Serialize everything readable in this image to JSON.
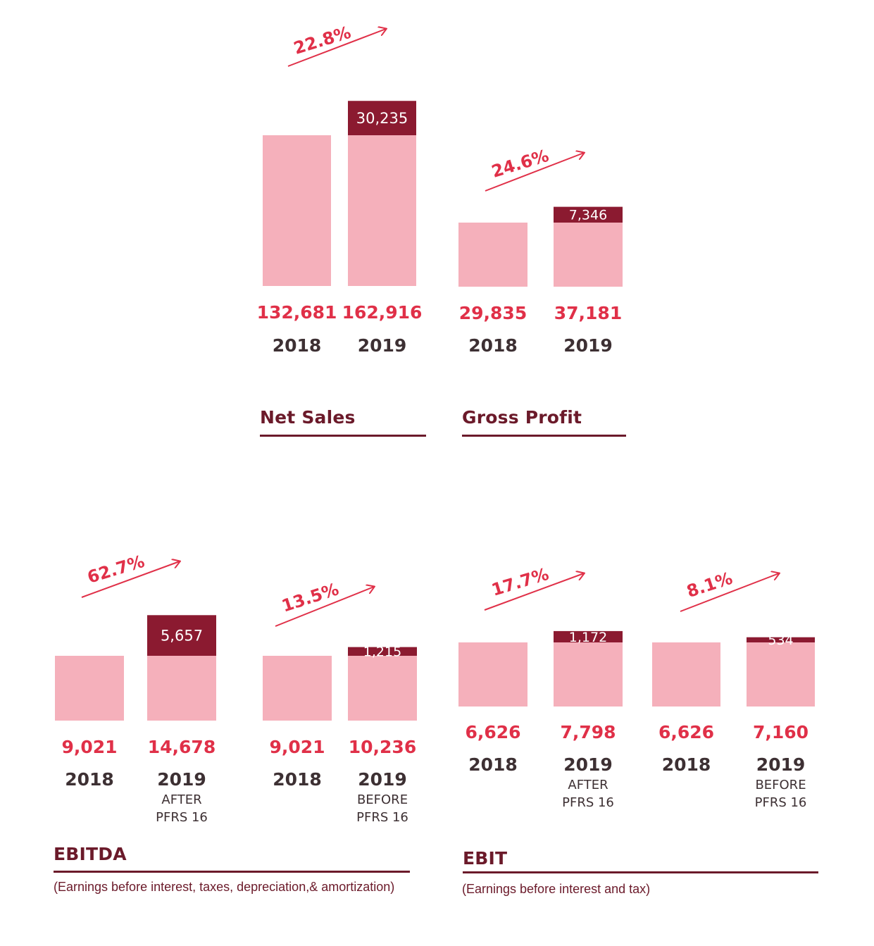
{
  "colors": {
    "base_bar": "#f5b0bb",
    "increment_bar": "#8b1a30",
    "value_text": "#e03048",
    "year_text": "#3d3033",
    "title_text": "#6b1a2a",
    "arrow": "#e03048"
  },
  "chart_data": [
    {
      "type": "bar",
      "title": "Net Sales",
      "growth": "22.8%",
      "categories": [
        "2018",
        "2019"
      ],
      "values": [
        132681,
        162916
      ],
      "value_labels": [
        "132,681",
        "162,916"
      ],
      "increment": 30235,
      "increment_label": "30,235",
      "year_notes": [
        "",
        ""
      ]
    },
    {
      "type": "bar",
      "title": "Gross Profit",
      "growth": "24.6%",
      "categories": [
        "2018",
        "2019"
      ],
      "values": [
        29835,
        37181
      ],
      "value_labels": [
        "29,835",
        "37,181"
      ],
      "increment": 7346,
      "increment_label": "7,346",
      "year_notes": [
        "",
        ""
      ]
    },
    {
      "type": "bar",
      "title": "EBITDA",
      "subtitle": "(Earnings before interest, taxes, depreciation,& amortization)",
      "growth": "62.7%",
      "categories": [
        "2018",
        "2019"
      ],
      "values": [
        9021,
        14678
      ],
      "value_labels": [
        "9,021",
        "14,678"
      ],
      "increment": 5657,
      "increment_label": "5,657",
      "year_notes": [
        "",
        "AFTER PFRS 16"
      ]
    },
    {
      "type": "bar",
      "growth": "13.5%",
      "categories": [
        "2018",
        "2019"
      ],
      "values": [
        9021,
        10236
      ],
      "value_labels": [
        "9,021",
        "10,236"
      ],
      "increment": 1215,
      "increment_label": "1,215",
      "year_notes": [
        "",
        "BEFORE PFRS 16"
      ]
    },
    {
      "type": "bar",
      "title": "EBIT",
      "subtitle": "(Earnings before interest and tax)",
      "growth": "17.7%",
      "categories": [
        "2018",
        "2019"
      ],
      "values": [
        6626,
        7798
      ],
      "value_labels": [
        "6,626",
        "7,798"
      ],
      "increment": 1172,
      "increment_label": "1,172",
      "year_notes": [
        "",
        "AFTER PFRS 16"
      ]
    },
    {
      "type": "bar",
      "growth": "8.1%",
      "categories": [
        "2018",
        "2019"
      ],
      "values": [
        6626,
        7160
      ],
      "value_labels": [
        "6,626",
        "7,160"
      ],
      "increment": 534,
      "increment_label": "534",
      "year_notes": [
        "",
        "BEFORE PFRS 16"
      ]
    }
  ]
}
